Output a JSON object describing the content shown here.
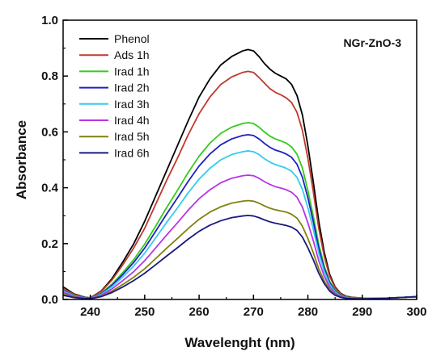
{
  "chart_data": {
    "type": "line",
    "title": "",
    "xlabel": "Wavelenght (nm)",
    "ylabel": "Absorbance",
    "xlim": [
      235,
      300
    ],
    "ylim": [
      0.0,
      1.0
    ],
    "xticks": [
      240,
      250,
      260,
      270,
      280,
      290,
      300
    ],
    "yticks": [
      "0.0",
      "0.2",
      "0.4",
      "0.6",
      "0.8",
      "1.0"
    ],
    "grid": false,
    "legend_position": "top-left",
    "annotation": "NGr-ZnO-3",
    "x": [
      235,
      237,
      239,
      240,
      242,
      244,
      246,
      248,
      250,
      252,
      254,
      256,
      258,
      260,
      262,
      264,
      266,
      268,
      269,
      270,
      271,
      272,
      273,
      274,
      275,
      276,
      277,
      278,
      279,
      280,
      281,
      282,
      283,
      284,
      285,
      286,
      287,
      288,
      290,
      292,
      295,
      300
    ],
    "series": [
      {
        "name": "Phenol",
        "color": "#000000",
        "values": [
          0.045,
          0.02,
          0.008,
          0.006,
          0.03,
          0.075,
          0.135,
          0.2,
          0.28,
          0.37,
          0.46,
          0.55,
          0.64,
          0.725,
          0.79,
          0.84,
          0.87,
          0.89,
          0.895,
          0.89,
          0.87,
          0.845,
          0.825,
          0.81,
          0.8,
          0.79,
          0.77,
          0.73,
          0.66,
          0.55,
          0.42,
          0.28,
          0.17,
          0.09,
          0.045,
          0.022,
          0.012,
          0.008,
          0.005,
          0.004,
          0.005,
          0.01
        ]
      },
      {
        "name": "Ads  1h",
        "color": "#c0392b",
        "values": [
          0.04,
          0.018,
          0.007,
          0.006,
          0.028,
          0.07,
          0.125,
          0.185,
          0.255,
          0.34,
          0.425,
          0.505,
          0.59,
          0.665,
          0.725,
          0.77,
          0.797,
          0.813,
          0.817,
          0.813,
          0.795,
          0.775,
          0.755,
          0.742,
          0.733,
          0.722,
          0.705,
          0.67,
          0.605,
          0.505,
          0.385,
          0.255,
          0.155,
          0.083,
          0.042,
          0.02,
          0.011,
          0.007,
          0.005,
          0.004,
          0.005,
          0.01
        ]
      },
      {
        "name": "Irad 1h",
        "color": "#33cc1a",
        "values": [
          0.035,
          0.015,
          0.006,
          0.005,
          0.022,
          0.055,
          0.097,
          0.143,
          0.198,
          0.262,
          0.328,
          0.39,
          0.455,
          0.513,
          0.56,
          0.595,
          0.617,
          0.63,
          0.633,
          0.63,
          0.617,
          0.6,
          0.585,
          0.575,
          0.568,
          0.56,
          0.546,
          0.52,
          0.47,
          0.39,
          0.298,
          0.198,
          0.12,
          0.065,
          0.033,
          0.016,
          0.009,
          0.006,
          0.004,
          0.004,
          0.005,
          0.01
        ]
      },
      {
        "name": "Irad 2h",
        "color": "#2020c0",
        "values": [
          0.033,
          0.014,
          0.006,
          0.005,
          0.02,
          0.051,
          0.09,
          0.133,
          0.184,
          0.244,
          0.305,
          0.363,
          0.423,
          0.478,
          0.521,
          0.554,
          0.575,
          0.587,
          0.59,
          0.587,
          0.575,
          0.559,
          0.545,
          0.535,
          0.529,
          0.521,
          0.509,
          0.484,
          0.437,
          0.364,
          0.278,
          0.184,
          0.112,
          0.06,
          0.031,
          0.015,
          0.008,
          0.006,
          0.004,
          0.004,
          0.005,
          0.01
        ]
      },
      {
        "name": "Irad 3h",
        "color": "#33ccee",
        "values": [
          0.03,
          0.013,
          0.005,
          0.004,
          0.018,
          0.046,
          0.081,
          0.12,
          0.166,
          0.22,
          0.275,
          0.327,
          0.382,
          0.431,
          0.47,
          0.5,
          0.519,
          0.529,
          0.532,
          0.529,
          0.519,
          0.504,
          0.492,
          0.483,
          0.477,
          0.47,
          0.459,
          0.437,
          0.394,
          0.328,
          0.251,
          0.166,
          0.101,
          0.054,
          0.028,
          0.013,
          0.007,
          0.005,
          0.004,
          0.004,
          0.005,
          0.01
        ]
      },
      {
        "name": "Irad 4h",
        "color": "#b833e6",
        "values": [
          0.026,
          0.011,
          0.005,
          0.004,
          0.015,
          0.038,
          0.068,
          0.1,
          0.139,
          0.184,
          0.23,
          0.274,
          0.32,
          0.361,
          0.393,
          0.418,
          0.434,
          0.443,
          0.445,
          0.443,
          0.434,
          0.422,
          0.412,
          0.404,
          0.399,
          0.393,
          0.384,
          0.366,
          0.33,
          0.274,
          0.21,
          0.139,
          0.084,
          0.045,
          0.023,
          0.011,
          0.006,
          0.004,
          0.003,
          0.004,
          0.005,
          0.01
        ]
      },
      {
        "name": "Irad 5h",
        "color": "#808010",
        "values": [
          0.02,
          0.009,
          0.004,
          0.003,
          0.012,
          0.03,
          0.054,
          0.08,
          0.11,
          0.146,
          0.183,
          0.218,
          0.254,
          0.287,
          0.313,
          0.332,
          0.345,
          0.352,
          0.354,
          0.352,
          0.345,
          0.335,
          0.327,
          0.321,
          0.317,
          0.313,
          0.305,
          0.291,
          0.262,
          0.218,
          0.167,
          0.11,
          0.067,
          0.036,
          0.018,
          0.009,
          0.005,
          0.003,
          0.003,
          0.003,
          0.005,
          0.01
        ]
      },
      {
        "name": "Irad 6h",
        "color": "#1a1a80",
        "values": [
          0.015,
          0.007,
          0.003,
          0.003,
          0.01,
          0.025,
          0.045,
          0.068,
          0.094,
          0.124,
          0.155,
          0.185,
          0.216,
          0.244,
          0.266,
          0.282,
          0.293,
          0.299,
          0.301,
          0.299,
          0.293,
          0.285,
          0.278,
          0.273,
          0.269,
          0.265,
          0.259,
          0.247,
          0.223,
          0.185,
          0.142,
          0.094,
          0.057,
          0.03,
          0.015,
          0.008,
          0.004,
          0.003,
          0.002,
          0.003,
          0.005,
          0.01
        ]
      }
    ]
  }
}
